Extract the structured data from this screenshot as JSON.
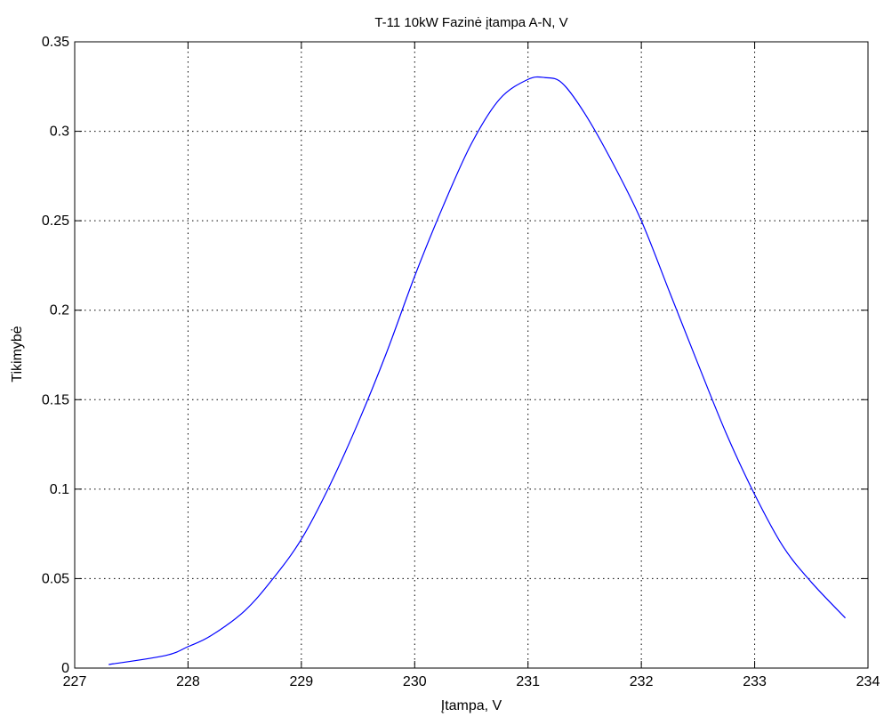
{
  "chart_data": {
    "type": "line",
    "title": "T-11 10kW Fazinė įtampa A-N, V",
    "xlabel": "Įtampa, V",
    "ylabel": "Tikimybė",
    "xlim": [
      227,
      234
    ],
    "ylim": [
      0,
      0.35
    ],
    "xticks": [
      227,
      228,
      229,
      230,
      231,
      232,
      233,
      234
    ],
    "yticks": [
      0,
      0.05,
      0.1,
      0.15,
      0.2,
      0.25,
      0.3,
      0.35
    ],
    "xtick_labels": [
      "227",
      "228",
      "229",
      "230",
      "231",
      "232",
      "233",
      "234"
    ],
    "ytick_labels": [
      "0",
      "0.05",
      "0.1",
      "0.15",
      "0.2",
      "0.25",
      "0.3",
      "0.35"
    ],
    "grid": true,
    "line_color": "#0000ff",
    "series": [
      {
        "x": [
          227.3,
          227.8,
          228.0,
          228.2,
          228.5,
          228.75,
          229.0,
          229.25,
          229.5,
          229.75,
          230.0,
          230.25,
          230.5,
          230.75,
          231.0,
          231.15,
          231.3,
          231.5,
          231.75,
          232.0,
          232.25,
          232.5,
          232.75,
          233.0,
          233.25,
          233.5,
          233.8
        ],
        "y": [
          0.002,
          0.007,
          0.012,
          0.018,
          0.032,
          0.05,
          0.072,
          0.102,
          0.137,
          0.176,
          0.219,
          0.258,
          0.293,
          0.318,
          0.329,
          0.33,
          0.327,
          0.31,
          0.282,
          0.25,
          0.21,
          0.17,
          0.131,
          0.097,
          0.068,
          0.048,
          0.028
        ]
      }
    ]
  }
}
